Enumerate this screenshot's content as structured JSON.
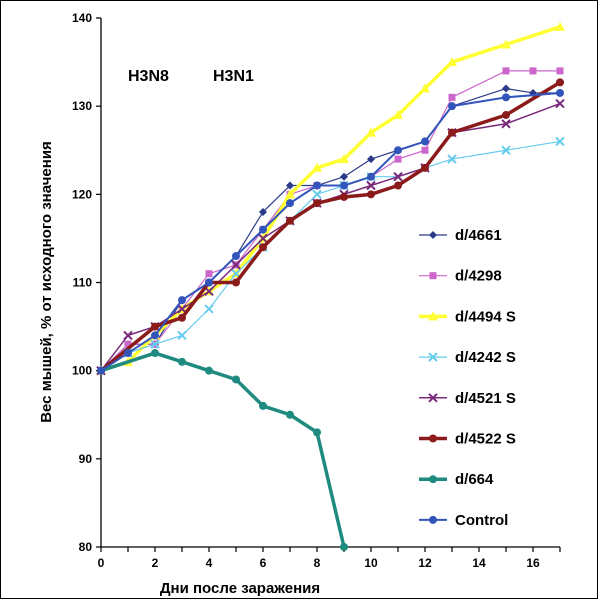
{
  "chart_data": {
    "type": "line",
    "xlabel": "Дни после заражения",
    "ylabel": "Вес мышей,  %  от исходного  значения",
    "xlim": [
      0,
      17
    ],
    "ylim": [
      80,
      140
    ],
    "x_ticks": [
      "0",
      "2",
      "4",
      "6",
      "8",
      "10",
      "12",
      "14",
      "16"
    ],
    "y_ticks": [
      "80",
      "90",
      "100",
      "110",
      "120",
      "130",
      "140"
    ],
    "grid": false,
    "legend_position": "right",
    "annotations": [
      "H3N8",
      "H3N1"
    ],
    "series": [
      {
        "name": "d/4661",
        "color": "#2b3a8a",
        "marker": "diamond",
        "width": 1.2,
        "x": [
          0,
          1,
          2,
          3,
          4,
          5,
          6,
          7,
          8,
          9,
          10,
          11,
          12,
          13,
          15,
          16,
          17
        ],
        "y": [
          100,
          103,
          103,
          108,
          110,
          113,
          118,
          121,
          121,
          122,
          124,
          125,
          126,
          130,
          132,
          131.5,
          131.5
        ]
      },
      {
        "name": "d/4298",
        "color": "#cc66cc",
        "marker": "square",
        "width": 1.2,
        "x": [
          0,
          1,
          2,
          3,
          4,
          5,
          6,
          7,
          8,
          9,
          10,
          11,
          12,
          13,
          15,
          16,
          17
        ],
        "y": [
          100,
          103,
          103,
          107,
          111,
          112,
          116,
          120,
          121,
          121,
          122,
          124,
          125,
          131,
          134,
          134,
          134
        ]
      },
      {
        "name": "d/4494 S",
        "color": "#ffff33",
        "marker": "triangle",
        "width": 3.5,
        "x": [
          0,
          1,
          2,
          3,
          4,
          5,
          6,
          7,
          8,
          9,
          10,
          11,
          12,
          13,
          15,
          17
        ],
        "y": [
          100,
          101,
          104,
          107,
          109,
          111,
          115,
          120,
          123,
          124,
          127,
          129,
          132,
          135,
          137,
          139
        ]
      },
      {
        "name": "d/4242 S",
        "color": "#66ccee",
        "marker": "x",
        "width": 1.2,
        "x": [
          0,
          1,
          2,
          3,
          4,
          5,
          6,
          7,
          8,
          9,
          10,
          11,
          12,
          13,
          15,
          17
        ],
        "y": [
          100,
          102,
          103,
          104,
          107,
          111,
          114,
          117,
          120,
          121,
          122,
          122,
          123,
          124,
          125,
          126
        ]
      },
      {
        "name": "d/4521 S",
        "color": "#7a2a7a",
        "marker": "x",
        "width": 1.5,
        "x": [
          0,
          1,
          2,
          3,
          4,
          5,
          6,
          7,
          8,
          9,
          10,
          11,
          12,
          13,
          15,
          17
        ],
        "y": [
          100,
          104,
          105,
          107,
          109,
          112,
          115,
          117,
          119,
          120,
          121,
          122,
          123,
          127,
          128,
          130.3
        ]
      },
      {
        "name": "d/4522 S",
        "color": "#8b1a1a",
        "marker": "circle",
        "width": 3.5,
        "x": [
          0,
          2,
          3,
          4,
          5,
          6,
          7,
          8,
          9,
          10,
          11,
          12,
          13,
          15,
          17
        ],
        "y": [
          100,
          105,
          106,
          110,
          110,
          114,
          117,
          119,
          119.7,
          120,
          121,
          123,
          127,
          129,
          132.7
        ]
      },
      {
        "name": "d/664",
        "color": "#1f8a80",
        "marker": "circle",
        "width": 3.5,
        "x": [
          0,
          2,
          3,
          4,
          5,
          6,
          7,
          8,
          9
        ],
        "y": [
          100,
          102,
          101,
          100,
          99,
          96,
          95,
          93,
          80
        ]
      },
      {
        "name": "Control",
        "color": "#3355bb",
        "marker": "circle",
        "width": 2,
        "x": [
          0,
          1,
          2,
          3,
          4,
          5,
          6,
          7,
          8,
          9,
          10,
          11,
          12,
          13,
          15,
          17
        ],
        "y": [
          100,
          102,
          104,
          108,
          110,
          113,
          116,
          119,
          121,
          121,
          122,
          125,
          126,
          130,
          131,
          131.5
        ]
      }
    ]
  }
}
